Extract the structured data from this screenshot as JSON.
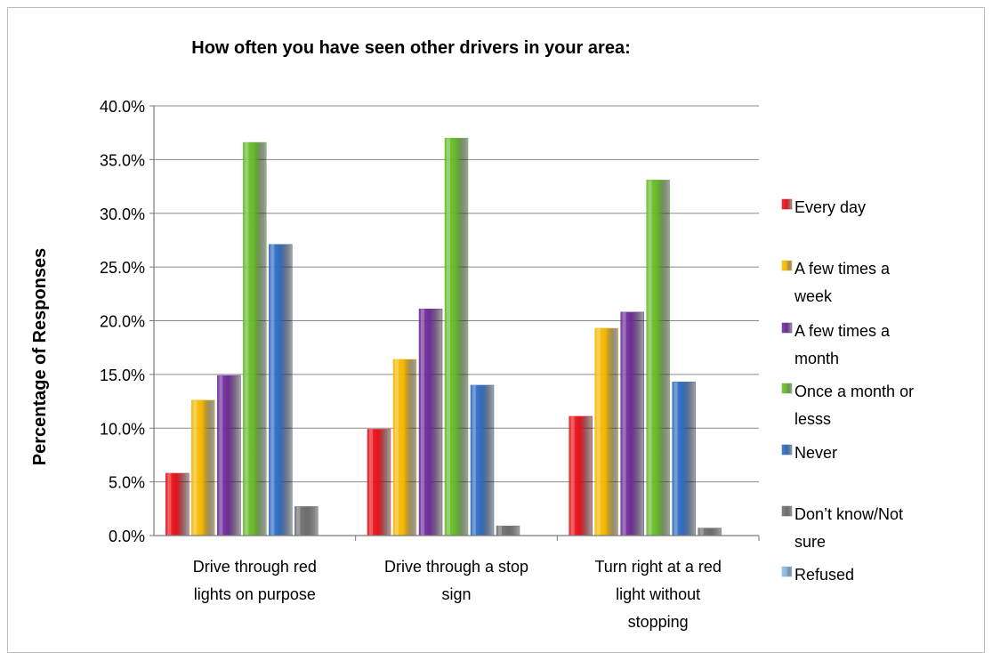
{
  "chart_data": {
    "type": "bar",
    "title": "How often you have seen other drivers in your area:",
    "ylabel": "Percentage of Responses",
    "xlabel": "",
    "ylim": [
      0,
      0.4
    ],
    "yticks": [
      "0.0%",
      "5.0%",
      "10.0%",
      "15.0%",
      "20.0%",
      "25.0%",
      "30.0%",
      "35.0%",
      "40.0%"
    ],
    "categories": [
      [
        "Drive through red",
        "lights on purpose"
      ],
      [
        "Drive through a stop",
        "sign"
      ],
      [
        "Turn right at a red",
        "light without",
        "stopping"
      ]
    ],
    "series": [
      {
        "name": [
          "Every day"
        ],
        "color": "#e8121a",
        "values": [
          0.058,
          0.099,
          0.111
        ]
      },
      {
        "name": [
          "A few times a",
          "week"
        ],
        "color": "#f5b800",
        "values": [
          0.126,
          0.164,
          0.193
        ]
      },
      {
        "name": [
          "A few times a",
          "month"
        ],
        "color": "#6e2c9a",
        "values": [
          0.149,
          0.211,
          0.208
        ]
      },
      {
        "name": [
          "Once a month or",
          "lesss"
        ],
        "color": "#66bb2a",
        "values": [
          0.366,
          0.37,
          0.331
        ]
      },
      {
        "name": [
          "Never"
        ],
        "color": "#2f6cc1",
        "values": [
          0.271,
          0.14,
          0.143
        ]
      },
      {
        "name": [
          "Don’t know/Not",
          "sure"
        ],
        "color": "#6f6f6f",
        "values": [
          0.027,
          0.009,
          0.007
        ]
      },
      {
        "name": [
          "Refused"
        ],
        "color": "#86b9e2",
        "values": [
          0,
          0,
          0
        ]
      }
    ],
    "grid": true,
    "legend": "right"
  }
}
